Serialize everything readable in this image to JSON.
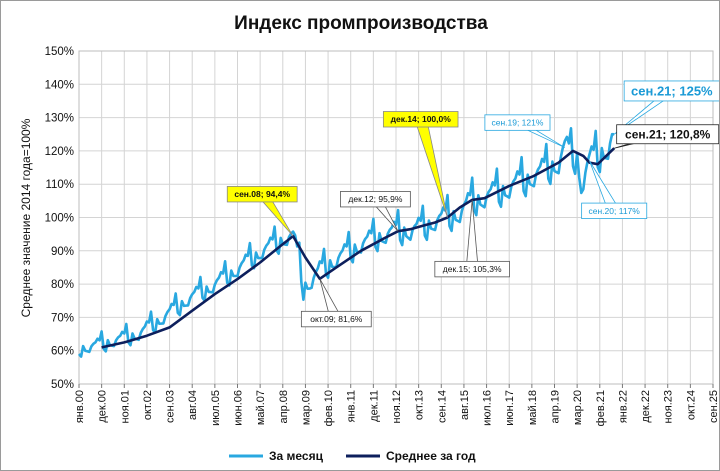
{
  "chart_data": {
    "type": "line",
    "title": "Индекс промпроизводства",
    "ylabel": "Среднее значение 2014 года=100%",
    "xlabel": "",
    "ylim": [
      50,
      150
    ],
    "yticks": [
      "50%",
      "60%",
      "70%",
      "80%",
      "90%",
      "100%",
      "110%",
      "120%",
      "130%",
      "140%",
      "150%"
    ],
    "xlim": [
      "2000-01",
      "2025-09"
    ],
    "xticks": [
      {
        "date": "2000-01",
        "label": "янв.00"
      },
      {
        "date": "2000-12",
        "label": "дек.00"
      },
      {
        "date": "2001-11",
        "label": "ноя.01"
      },
      {
        "date": "2002-10",
        "label": "окт.02"
      },
      {
        "date": "2003-09",
        "label": "сен.03"
      },
      {
        "date": "2004-08",
        "label": "авг.04"
      },
      {
        "date": "2005-07",
        "label": "июл.05"
      },
      {
        "date": "2006-06",
        "label": "июн.06"
      },
      {
        "date": "2007-05",
        "label": "май.07"
      },
      {
        "date": "2008-04",
        "label": "апр.08"
      },
      {
        "date": "2009-03",
        "label": "мар.09"
      },
      {
        "date": "2010-02",
        "label": "фев.10"
      },
      {
        "date": "2011-01",
        "label": "янв.11"
      },
      {
        "date": "2011-12",
        "label": "дек.11"
      },
      {
        "date": "2012-11",
        "label": "ноя.12"
      },
      {
        "date": "2013-10",
        "label": "окт.13"
      },
      {
        "date": "2014-09",
        "label": "сен.14"
      },
      {
        "date": "2015-08",
        "label": "авг.15"
      },
      {
        "date": "2016-07",
        "label": "июл.16"
      },
      {
        "date": "2017-06",
        "label": "июн.17"
      },
      {
        "date": "2018-05",
        "label": "май.18"
      },
      {
        "date": "2019-04",
        "label": "апр.19"
      },
      {
        "date": "2020-03",
        "label": "мар.20"
      },
      {
        "date": "2021-02",
        "label": "фев.21"
      },
      {
        "date": "2022-01",
        "label": "янв.22"
      },
      {
        "date": "2022-12",
        "label": "дек.22"
      },
      {
        "date": "2023-11",
        "label": "ноя.23"
      },
      {
        "date": "2024-10",
        "label": "окт.24"
      },
      {
        "date": "2025-09",
        "label": "сен.25"
      }
    ],
    "grid": true,
    "legend_position": "bottom",
    "series": [
      {
        "name": "За месяц",
        "color": "#29a8e0",
        "seasonal": [
          -2.5,
          -4.0,
          1.0,
          -1.5,
          -2.0,
          -2.5,
          0.0,
          1.0,
          1.5,
          3.0,
          2.0,
          6.0
        ],
        "points": [
          {
            "date": "2000-01",
            "value": 60.5
          },
          {
            "date": "2000-12",
            "value": 62.0
          },
          {
            "date": "2001-06",
            "value": 63.0
          },
          {
            "date": "2002-06",
            "value": 65.0
          },
          {
            "date": "2003-06",
            "value": 70.0
          },
          {
            "date": "2004-06",
            "value": 75.5
          },
          {
            "date": "2005-06",
            "value": 79.5
          },
          {
            "date": "2006-06",
            "value": 84.5
          },
          {
            "date": "2007-06",
            "value": 90.0
          },
          {
            "date": "2008-06",
            "value": 94.0
          },
          {
            "date": "2008-09",
            "value": 94.4
          },
          {
            "date": "2008-12",
            "value": 87.0
          },
          {
            "date": "2009-02",
            "value": 79.0
          },
          {
            "date": "2009-05",
            "value": 80.5
          },
          {
            "date": "2009-10",
            "value": 84.0
          },
          {
            "date": "2010-06",
            "value": 87.5
          },
          {
            "date": "2011-06",
            "value": 92.0
          },
          {
            "date": "2012-06",
            "value": 95.0
          },
          {
            "date": "2012-12",
            "value": 95.9
          },
          {
            "date": "2013-06",
            "value": 96.0
          },
          {
            "date": "2013-12",
            "value": 97.0
          },
          {
            "date": "2014-06",
            "value": 99.0
          },
          {
            "date": "2014-12",
            "value": 100.0
          },
          {
            "date": "2015-06",
            "value": 101.5
          },
          {
            "date": "2015-12",
            "value": 105.0
          },
          {
            "date": "2016-06",
            "value": 106.0
          },
          {
            "date": "2017-06",
            "value": 109.0
          },
          {
            "date": "2018-06",
            "value": 112.5
          },
          {
            "date": "2019-06",
            "value": 116.5
          },
          {
            "date": "2019-09",
            "value": 121.0
          },
          {
            "date": "2019-12",
            "value": 119.0
          },
          {
            "date": "2020-03",
            "value": 118.0
          },
          {
            "date": "2020-05",
            "value": 110.0
          },
          {
            "date": "2020-09",
            "value": 117.0
          },
          {
            "date": "2020-12",
            "value": 118.0
          },
          {
            "date": "2021-06",
            "value": 121.0
          },
          {
            "date": "2021-09",
            "value": 125.0
          }
        ]
      },
      {
        "name": "Среднее за год",
        "color": "#0d1f5c",
        "points": [
          {
            "date": "2000-12",
            "value": 61.0
          },
          {
            "date": "2001-11",
            "value": 62.5
          },
          {
            "date": "2002-10",
            "value": 64.5
          },
          {
            "date": "2003-09",
            "value": 67.0
          },
          {
            "date": "2004-08",
            "value": 72.0
          },
          {
            "date": "2005-07",
            "value": 77.0
          },
          {
            "date": "2006-06",
            "value": 81.5
          },
          {
            "date": "2007-05",
            "value": 86.5
          },
          {
            "date": "2008-04",
            "value": 92.0
          },
          {
            "date": "2008-09",
            "value": 94.4
          },
          {
            "date": "2009-03",
            "value": 88.0
          },
          {
            "date": "2009-10",
            "value": 81.6
          },
          {
            "date": "2010-06",
            "value": 85.0
          },
          {
            "date": "2011-06",
            "value": 90.0
          },
          {
            "date": "2012-06",
            "value": 94.0
          },
          {
            "date": "2012-12",
            "value": 95.9
          },
          {
            "date": "2013-06",
            "value": 96.5
          },
          {
            "date": "2013-12",
            "value": 97.5
          },
          {
            "date": "2014-06",
            "value": 98.5
          },
          {
            "date": "2014-12",
            "value": 100.0
          },
          {
            "date": "2015-06",
            "value": 103.0
          },
          {
            "date": "2015-12",
            "value": 105.3
          },
          {
            "date": "2016-06",
            "value": 105.8
          },
          {
            "date": "2017-06",
            "value": 109.5
          },
          {
            "date": "2018-06",
            "value": 112.5
          },
          {
            "date": "2019-06",
            "value": 116.5
          },
          {
            "date": "2020-01",
            "value": 120.0
          },
          {
            "date": "2020-06",
            "value": 118.5
          },
          {
            "date": "2020-09",
            "value": 116.5
          },
          {
            "date": "2021-01",
            "value": 116.0
          },
          {
            "date": "2021-09",
            "value": 120.8
          }
        ]
      }
    ],
    "annotations": [
      {
        "text": "сен.08; 94,4%",
        "date": "2008-09",
        "value": 94.4,
        "style": "yellow",
        "at_date": "2007-06",
        "at_value": 107
      },
      {
        "text": "окт.09; 81,6%",
        "date": "2009-10",
        "value": 81.6,
        "style": "white",
        "at_date": "2010-06",
        "at_value": 69.5
      },
      {
        "text": "дек.12; 95,9%",
        "date": "2012-12",
        "value": 95.9,
        "style": "white",
        "at_date": "2012-01",
        "at_value": 105.5
      },
      {
        "text": "дек.14; 100,0%",
        "date": "2014-12",
        "value": 100.0,
        "style": "yellow",
        "at_date": "2013-11",
        "at_value": 129.5
      },
      {
        "text": "дек.15; 105,3%",
        "date": "2015-12",
        "value": 105.3,
        "style": "white",
        "at_date": "2015-12",
        "at_value": 84.5
      },
      {
        "text": "сен.19; 121%",
        "date": "2019-09",
        "value": 121.0,
        "style": "cyan",
        "at_date": "2017-10",
        "at_value": 128.5
      },
      {
        "text": "сен.20; 117%",
        "date": "2020-09",
        "value": 117.0,
        "style": "cyan",
        "at_date": "2021-09",
        "at_value": 102.0
      },
      {
        "text": "сен.21; 125%",
        "date": "2021-09",
        "value": 125.0,
        "style": "cyan-big",
        "at_date": "2024-01",
        "at_value": 138.0
      },
      {
        "text": "сен.21; 120,8%",
        "date": "2021-09",
        "value": 120.8,
        "style": "black-big",
        "at_date": "2023-11",
        "at_value": 125.0
      }
    ]
  }
}
